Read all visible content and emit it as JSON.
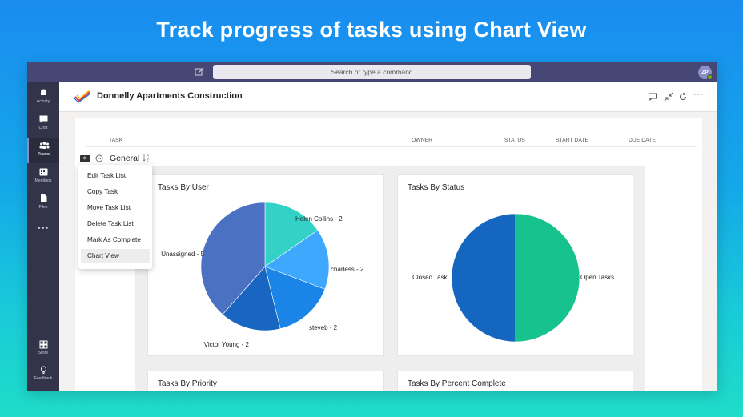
{
  "hero": {
    "title": "Track progress of tasks using Chart View"
  },
  "topbar": {
    "search_placeholder": "Search or type a command",
    "avatar_initials": "ZP"
  },
  "rail": {
    "items": [
      {
        "label": "Activity",
        "icon": "bell-icon"
      },
      {
        "label": "Chat",
        "icon": "chat-icon"
      },
      {
        "label": "Teams",
        "icon": "teams-icon",
        "active": true
      },
      {
        "label": "Meetings",
        "icon": "calendar-icon"
      },
      {
        "label": "Files",
        "icon": "file-icon"
      }
    ],
    "more": "•••",
    "bottom": [
      {
        "label": "Store",
        "icon": "store-icon"
      },
      {
        "label": "Feedback",
        "icon": "lightbulb-icon"
      }
    ]
  },
  "header": {
    "title": "Donnelly Apartments Construction",
    "more": "···"
  },
  "table": {
    "columns": [
      "TASK",
      "OWNER",
      "STATUS",
      "START DATE",
      "DUE DATE"
    ],
    "group_name": "General",
    "group_tag": "⊕·"
  },
  "menu": {
    "items": [
      "Edit Task List",
      "Copy Task",
      "Move Task List",
      "Delete Task List",
      "Mark As Complete",
      "Chart View"
    ],
    "selected_index": 5
  },
  "cards": {
    "by_user": "Tasks By User",
    "by_status": "Tasks By Status",
    "by_priority": "Tasks By Priority",
    "by_percent": "Tasks By Percent Complete"
  },
  "chart_data": [
    {
      "type": "pie",
      "title": "Tasks By User",
      "slices": [
        {
          "label": "Helen Collins - 2",
          "value": 2,
          "color": "#33d1c6"
        },
        {
          "label": "charless - 2",
          "value": 2,
          "color": "#3ea8ff"
        },
        {
          "label": "steveb - 2",
          "value": 2,
          "color": "#1a85e6"
        },
        {
          "label": "Victor Young - 2",
          "value": 2,
          "color": "#1866c2"
        },
        {
          "label": "Unassigned - 5",
          "value": 5,
          "color": "#4b72c2"
        }
      ]
    },
    {
      "type": "pie",
      "title": "Tasks By Status",
      "slices": [
        {
          "label": "Open Tasks ..",
          "value": 1,
          "color": "#16c38e"
        },
        {
          "label": "Closed Task..",
          "value": 1,
          "color": "#1566bf"
        }
      ]
    }
  ]
}
